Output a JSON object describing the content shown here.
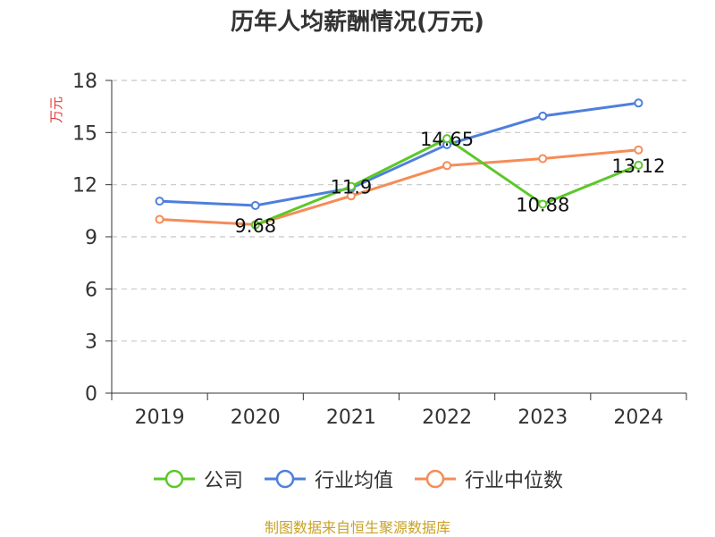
{
  "chart_data": {
    "type": "line",
    "title": "历年人均薪酬情况(万元)",
    "ylabel": "万元",
    "xlabel": "",
    "categories": [
      "2019",
      "2020",
      "2021",
      "2022",
      "2023",
      "2024"
    ],
    "ylim": [
      0,
      18
    ],
    "yticks": [
      0,
      3,
      6,
      9,
      12,
      15,
      18
    ],
    "grid": "horizontal-dashed",
    "legend_position": "bottom",
    "series": [
      {
        "name": "公司",
        "color": "#5cc82a",
        "values": [
          null,
          9.68,
          11.9,
          14.65,
          10.88,
          13.12
        ],
        "labels": [
          null,
          "9.68",
          "11.9",
          "14.65",
          "10.88",
          "13.12"
        ]
      },
      {
        "name": "行业均值",
        "color": "#4e7fdc",
        "values": [
          11.05,
          10.8,
          11.8,
          14.3,
          15.95,
          16.7
        ]
      },
      {
        "name": "行业中位数",
        "color": "#f58c58",
        "values": [
          10.0,
          9.7,
          11.35,
          13.1,
          13.5,
          14.0
        ]
      }
    ]
  },
  "source": "制图数据来自恒生聚源数据库"
}
